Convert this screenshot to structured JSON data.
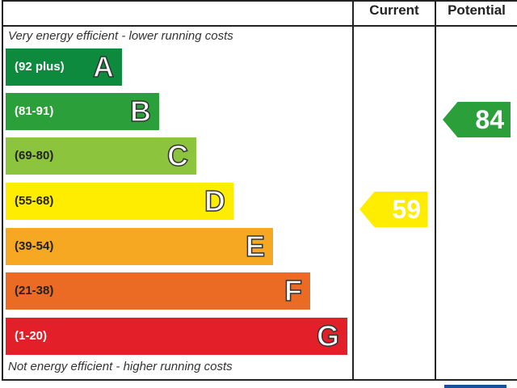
{
  "chart_data": {
    "type": "bar",
    "header": {
      "current": "Current",
      "potential": "Potential"
    },
    "top_note": "Very energy efficient - lower running costs",
    "bottom_note": "Not energy efficient - higher running costs",
    "bands": [
      {
        "range": "(92 plus)",
        "letter": "A",
        "color": "#0e8a3e"
      },
      {
        "range": "(81-91)",
        "letter": "B",
        "color": "#2ba03a"
      },
      {
        "range": "(69-80)",
        "letter": "C",
        "color": "#8cc43e"
      },
      {
        "range": "(55-68)",
        "letter": "D",
        "color": "#ffed00"
      },
      {
        "range": "(39-54)",
        "letter": "E",
        "color": "#f7a823"
      },
      {
        "range": "(21-38)",
        "letter": "F",
        "color": "#ec6b24"
      },
      {
        "range": "(1-20)",
        "letter": "G",
        "color": "#e3202a"
      }
    ],
    "current": {
      "value": "59",
      "band": "D",
      "color": "#ffed00"
    },
    "potential": {
      "value": "84",
      "band": "B",
      "color": "#2ba03a"
    }
  }
}
